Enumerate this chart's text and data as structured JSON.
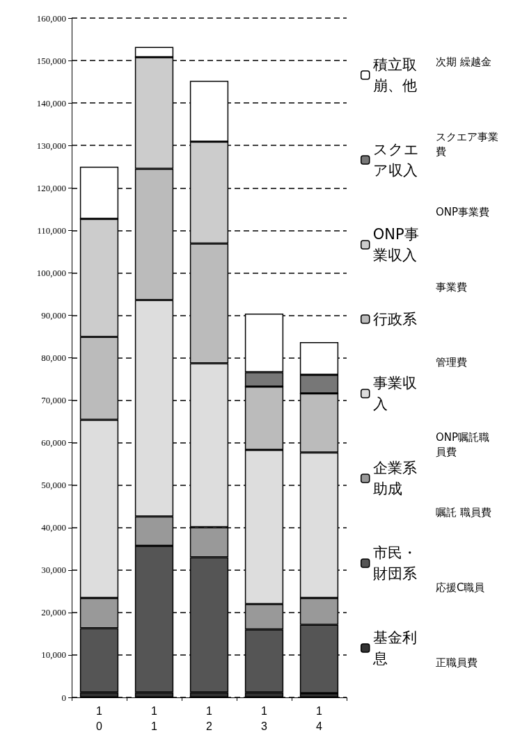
{
  "chart_data": {
    "type": "bar",
    "stacked": true,
    "categories": [
      "10",
      "11",
      "12",
      "13",
      "14"
    ],
    "series": [
      {
        "name": "基金利息",
        "color": "#333333",
        "values": [
          1200,
          1200,
          1200,
          1200,
          1000
        ]
      },
      {
        "name": "市民・財団系",
        "color": "#555555",
        "values": [
          15100,
          34500,
          31800,
          14800,
          16100
        ]
      },
      {
        "name": "企業系助成",
        "color": "#999999",
        "values": [
          7100,
          6900,
          7100,
          6000,
          6300
        ]
      },
      {
        "name": "事業収入",
        "color": "#dddddd",
        "values": [
          42000,
          51000,
          38600,
          36300,
          34300
        ]
      },
      {
        "name": "行政系",
        "color": "#bbbbbb",
        "values": [
          19500,
          30900,
          28200,
          14900,
          13900
        ]
      },
      {
        "name": "ONP事業収入",
        "color": "#cccccc",
        "values": [
          27800,
          26300,
          24000,
          0,
          0
        ]
      },
      {
        "name": "スクエア収入",
        "color": "#777777",
        "values": [
          0,
          0,
          0,
          3400,
          4400
        ]
      },
      {
        "name": "積立取崩、他",
        "color": "#ffffff",
        "values": [
          12300,
          2400,
          14300,
          13800,
          7700
        ]
      }
    ],
    "ylim": [
      0,
      160000
    ],
    "yticks": [
      0,
      {
        "value": 10000,
        "label": "10,000"
      },
      {
        "value": 20000,
        "label": "20,000"
      },
      {
        "value": 30000,
        "label": "30,000"
      },
      {
        "value": 40000,
        "label": "40,000"
      },
      {
        "value": 50000,
        "label": "50,000"
      },
      {
        "value": 60000,
        "label": "60,000"
      },
      {
        "value": 70000,
        "label": "70,000"
      },
      {
        "value": 80000,
        "label": "80,000"
      },
      {
        "value": 90000,
        "label": "90,000"
      },
      {
        "value": 100000,
        "label": "100,000"
      },
      {
        "value": 110000,
        "label": "110,000"
      },
      {
        "value": 120000,
        "label": "120,000"
      },
      {
        "value": 130000,
        "label": "130,000"
      },
      {
        "value": 140000,
        "label": "140,000"
      },
      {
        "value": 150000,
        "label": "150,000"
      },
      {
        "value": 160000,
        "label": "160,000"
      }
    ],
    "grid": "y",
    "legend": "right",
    "annotations": [
      "次期 繰越金",
      "スクエア事業費",
      "ONP事業費",
      "事業費",
      "管理費",
      "ONP嘱託職員費",
      "嘱託 職員費",
      "応援C職員",
      "正職員費"
    ]
  }
}
